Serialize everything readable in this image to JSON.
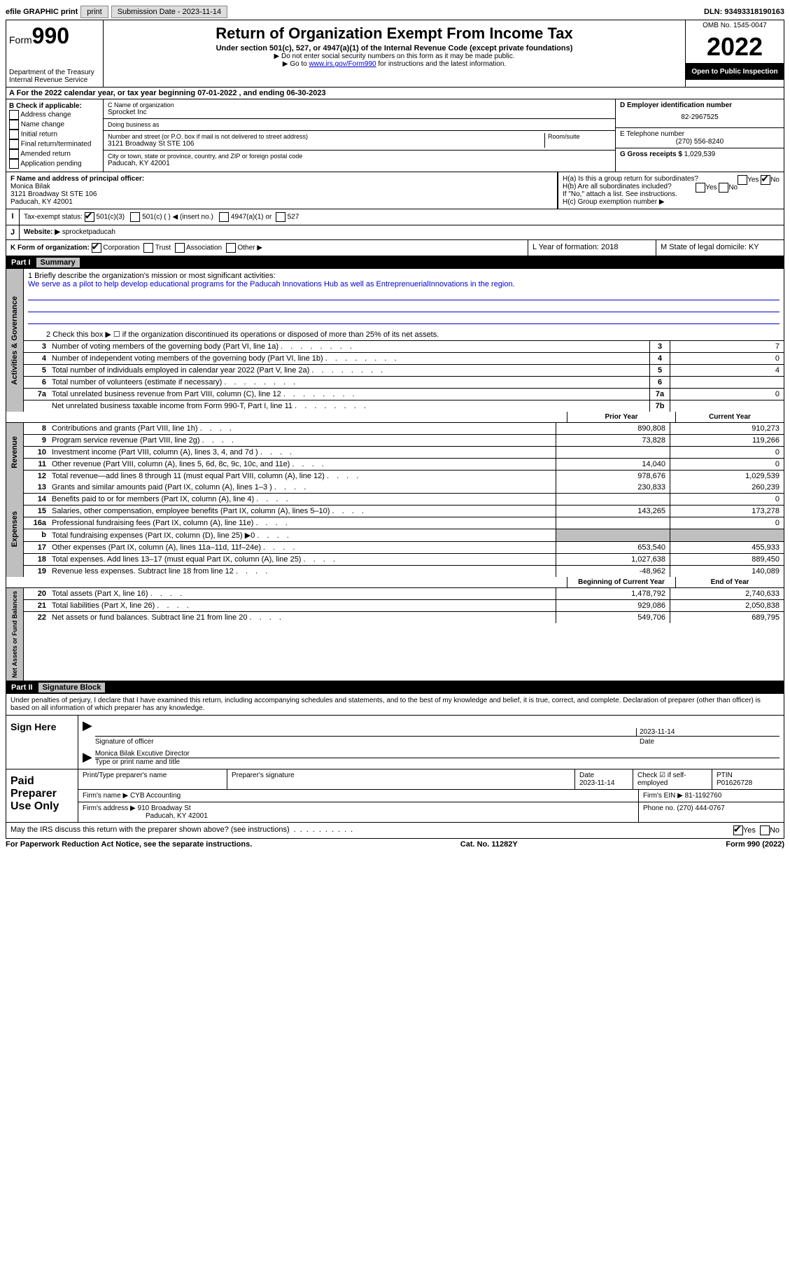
{
  "top": {
    "efile": "efile GRAPHIC print",
    "submission": "Submission Date - 2023-11-14",
    "dln": "DLN: 93493318190163"
  },
  "header": {
    "form_word": "Form",
    "form_num": "990",
    "title": "Return of Organization Exempt From Income Tax",
    "subtitle": "Under section 501(c), 527, or 4947(a)(1) of the Internal Revenue Code (except private foundations)",
    "note1": "▶ Do not enter social security numbers on this form as it may be made public.",
    "note2_pre": "▶ Go to ",
    "note2_link": "www.irs.gov/Form990",
    "note2_post": " for instructions and the latest information.",
    "dept": "Department of the Treasury\nInternal Revenue Service",
    "omb": "OMB No. 1545-0047",
    "year": "2022",
    "open": "Open to Public Inspection"
  },
  "rowA": "A For the 2022 calendar year, or tax year beginning 07-01-2022    , and ending 06-30-2023",
  "boxB": {
    "label": "B Check if applicable:",
    "items": [
      "Address change",
      "Name change",
      "Initial return",
      "Final return/terminated",
      "Amended return",
      "Application pending"
    ]
  },
  "boxC": {
    "name_lbl": "C Name of organization",
    "name": "Sprocket Inc",
    "dba_lbl": "Doing business as",
    "street_lbl": "Number and street (or P.O. box if mail is not delivered to street address)",
    "room_lbl": "Room/suite",
    "street": "3121 Broadway St STE 106",
    "city_lbl": "City or town, state or province, country, and ZIP or foreign postal code",
    "city": "Paducah, KY  42001"
  },
  "boxD": {
    "lbl": "D Employer identification number",
    "val": "82-2967525",
    "tel_lbl": "E Telephone number",
    "tel": "(270) 556-8240",
    "gross_lbl": "G Gross receipts $",
    "gross": "1,029,539"
  },
  "boxF": {
    "lbl": "F  Name and address of principal officer:",
    "name": "Monica Bilak",
    "addr1": "3121 Broadway St STE 106",
    "addr2": "Paducah, KY  42001"
  },
  "boxH": {
    "a": "H(a)  Is this a group return for subordinates?",
    "b": "H(b)  Are all subordinates included?",
    "bnote": "If \"No,\" attach a list. See instructions.",
    "c": "H(c)  Group exemption number ▶"
  },
  "rowI": {
    "lbl": "Tax-exempt status:",
    "opt1": "501(c)(3)",
    "opt2": "501(c) (  ) ◀ (insert no.)",
    "opt3": "4947(a)(1) or",
    "opt4": "527"
  },
  "rowJ": {
    "lbl": "Website: ▶",
    "val": "sprocketpaducah"
  },
  "rowK": {
    "lbl": "K Form of organization:",
    "opts": [
      "Corporation",
      "Trust",
      "Association",
      "Other ▶"
    ],
    "L": "L Year of formation: 2018",
    "M": "M State of legal domicile: KY"
  },
  "part1": {
    "num": "Part I",
    "title": "Summary"
  },
  "mission": {
    "lbl": "1   Briefly describe the organization's mission or most significant activities:",
    "text": "We serve as a pilot to help develop educational programs for the Paducah Innovations Hub as well as EntreprenuerialInnovations in the region."
  },
  "line2": "2   Check this box ▶ ☐  if the organization discontinued its operations or disposed of more than 25% of its net assets.",
  "sections": {
    "gov": "Activities & Governance",
    "rev": "Revenue",
    "exp": "Expenses",
    "net": "Net Assets or Fund Balances"
  },
  "govRows": [
    {
      "n": "3",
      "d": "Number of voting members of the governing body (Part VI, line 1a)",
      "nb": "3",
      "v": "7"
    },
    {
      "n": "4",
      "d": "Number of independent voting members of the governing body (Part VI, line 1b)",
      "nb": "4",
      "v": "0"
    },
    {
      "n": "5",
      "d": "Total number of individuals employed in calendar year 2022 (Part V, line 2a)",
      "nb": "5",
      "v": "4"
    },
    {
      "n": "6",
      "d": "Total number of volunteers (estimate if necessary)",
      "nb": "6",
      "v": ""
    },
    {
      "n": "7a",
      "d": "Total unrelated business revenue from Part VIII, column (C), line 12",
      "nb": "7a",
      "v": "0"
    },
    {
      "n": "",
      "d": "Net unrelated business taxable income from Form 990-T, Part I, line 11",
      "nb": "7b",
      "v": ""
    }
  ],
  "hdrCols": {
    "py": "Prior Year",
    "cy": "Current Year",
    "by": "Beginning of Current Year",
    "ey": "End of Year"
  },
  "revRows": [
    {
      "n": "8",
      "d": "Contributions and grants (Part VIII, line 1h)",
      "p": "890,808",
      "c": "910,273"
    },
    {
      "n": "9",
      "d": "Program service revenue (Part VIII, line 2g)",
      "p": "73,828",
      "c": "119,266"
    },
    {
      "n": "10",
      "d": "Investment income (Part VIII, column (A), lines 3, 4, and 7d )",
      "p": "",
      "c": "0"
    },
    {
      "n": "11",
      "d": "Other revenue (Part VIII, column (A), lines 5, 6d, 8c, 9c, 10c, and 11e)",
      "p": "14,040",
      "c": "0"
    },
    {
      "n": "12",
      "d": "Total revenue—add lines 8 through 11 (must equal Part VIII, column (A), line 12)",
      "p": "978,676",
      "c": "1,029,539"
    }
  ],
  "expRows": [
    {
      "n": "13",
      "d": "Grants and similar amounts paid (Part IX, column (A), lines 1–3 )",
      "p": "230,833",
      "c": "260,239"
    },
    {
      "n": "14",
      "d": "Benefits paid to or for members (Part IX, column (A), line 4)",
      "p": "",
      "c": "0"
    },
    {
      "n": "15",
      "d": "Salaries, other compensation, employee benefits (Part IX, column (A), lines 5–10)",
      "p": "143,265",
      "c": "173,278"
    },
    {
      "n": "16a",
      "d": "Professional fundraising fees (Part IX, column (A), line 11e)",
      "p": "",
      "c": "0"
    },
    {
      "n": "b",
      "d": "Total fundraising expenses (Part IX, column (D), line 25) ▶0",
      "p": "grey",
      "c": "grey"
    },
    {
      "n": "17",
      "d": "Other expenses (Part IX, column (A), lines 11a–11d, 11f–24e)",
      "p": "653,540",
      "c": "455,933"
    },
    {
      "n": "18",
      "d": "Total expenses. Add lines 13–17 (must equal Part IX, column (A), line 25)",
      "p": "1,027,638",
      "c": "889,450"
    },
    {
      "n": "19",
      "d": "Revenue less expenses. Subtract line 18 from line 12",
      "p": "-48,962",
      "c": "140,089"
    }
  ],
  "netRows": [
    {
      "n": "20",
      "d": "Total assets (Part X, line 16)",
      "p": "1,478,792",
      "c": "2,740,633"
    },
    {
      "n": "21",
      "d": "Total liabilities (Part X, line 26)",
      "p": "929,086",
      "c": "2,050,838"
    },
    {
      "n": "22",
      "d": "Net assets or fund balances. Subtract line 21 from line 20",
      "p": "549,706",
      "c": "689,795"
    }
  ],
  "part2": {
    "num": "Part II",
    "title": "Signature Block"
  },
  "penalties": "Under penalties of perjury, I declare that I have examined this return, including accompanying schedules and statements, and to the best of my knowledge and belief, it is true, correct, and complete. Declaration of preparer (other than officer) is based on all information of which preparer has any knowledge.",
  "sign": {
    "lbl": "Sign Here",
    "sig_lbl": "Signature of officer",
    "date": "2023-11-14",
    "date_lbl": "Date",
    "name": "Monica Bilak  Excutive Director",
    "name_lbl": "Type or print name and title"
  },
  "paid": {
    "lbl": "Paid Preparer Use Only",
    "h1": "Print/Type preparer's name",
    "h2": "Preparer's signature",
    "h3": "Date",
    "h3v": "2023-11-14",
    "h4": "Check ☑ if self-employed",
    "h5": "PTIN",
    "h5v": "P01626728",
    "r2a": "Firm's name   ▶",
    "r2av": "CYB Accounting",
    "r2b": "Firm's EIN ▶",
    "r2bv": "81-1192760",
    "r3a": "Firm's address ▶",
    "r3av": "910 Broadway St",
    "r3av2": "Paducah, KY  42001",
    "r3b": "Phone no.",
    "r3bv": "(270) 444-0767"
  },
  "discuss": "May the IRS discuss this return with the preparer shown above? (see instructions)",
  "bottom": {
    "l": "For Paperwork Reduction Act Notice, see the separate instructions.",
    "m": "Cat. No. 11282Y",
    "r": "Form 990 (2022)"
  }
}
